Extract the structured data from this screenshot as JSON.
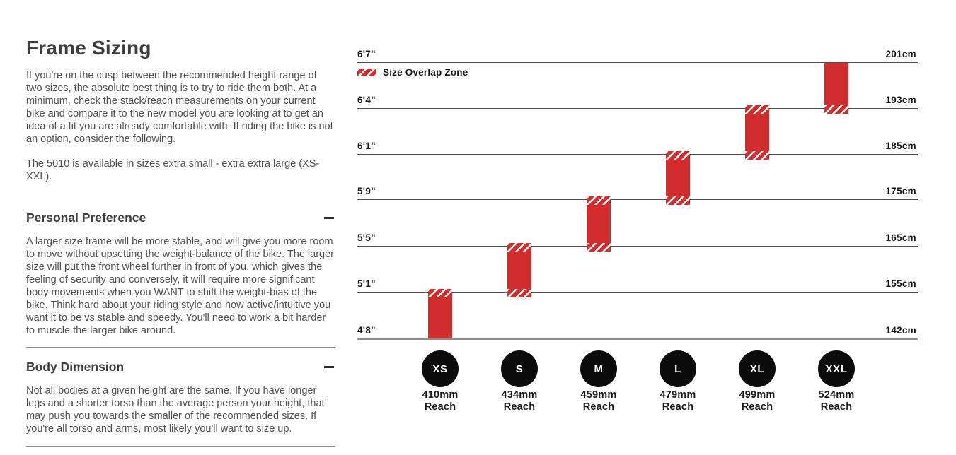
{
  "page": {
    "title": "Frame Sizing",
    "intro": "If you're on the cusp between the recommended height range of two sizes, the absolute best thing is to try to ride them both. At a minimum, check the stack/reach measurements on your current bike and compare it to the new model you are looking at to get an idea of a fit you are already comfortable with. If riding the bike is not an option, consider the following.",
    "availability": "The 5010 is available in sizes extra small - extra extra large (XS-XXL).",
    "sections": [
      {
        "title": "Personal Preference",
        "state": "expanded",
        "body": "A larger size frame will be more stable, and will give you more room to move without upsetting the weight-balance of the bike. The larger size will put the front wheel further in front of you, which gives the feeling of security and conversely, it will require more significant body movements when you WANT to shift the weight-bias of the bike. Think hard about your riding style and how active/intuitive you want it to be vs stable and speedy. You'll need to work a bit harder to muscle the larger bike around."
      },
      {
        "title": "Body Dimension",
        "state": "expanded",
        "body": "Not all bodies at a given height are the same. If you have longer legs and a shorter torso than the average person your height, that may push you towards the smaller of the recommended sizes. If you're all torso and arms, most likely you'll want to size up."
      }
    ]
  },
  "chart_data": {
    "type": "bar",
    "subtype": "floating-range-bars",
    "legend_label": "Size Overlap Zone",
    "axis": {
      "left_unit": "feet/inches",
      "right_unit": "cm",
      "range_metric_cm": [
        142,
        201
      ],
      "grid": true
    },
    "gridlines": [
      {
        "imperial": "6'7\"",
        "metric": "201cm",
        "cm": 201
      },
      {
        "imperial": "6'4\"",
        "metric": "193cm",
        "cm": 193
      },
      {
        "imperial": "6'1\"",
        "metric": "185cm",
        "cm": 185
      },
      {
        "imperial": "5'9\"",
        "metric": "175cm",
        "cm": 175
      },
      {
        "imperial": "5'5\"",
        "metric": "165cm",
        "cm": 165
      },
      {
        "imperial": "5'1\"",
        "metric": "155cm",
        "cm": 155
      },
      {
        "imperial": "4'8\"",
        "metric": "142cm",
        "cm": 142
      }
    ],
    "series": [
      {
        "size": "XS",
        "reach": "410mm",
        "reach_label": "Reach",
        "reach_mm": 410,
        "height_min_cm": 142,
        "height_max_cm": 155,
        "overlap_top": true,
        "overlap_bottom": false
      },
      {
        "size": "S",
        "reach": "434mm",
        "reach_label": "Reach",
        "reach_mm": 434,
        "height_min_cm": 155,
        "height_max_cm": 165,
        "overlap_top": true,
        "overlap_bottom": true
      },
      {
        "size": "M",
        "reach": "459mm",
        "reach_label": "Reach",
        "reach_mm": 459,
        "height_min_cm": 165,
        "height_max_cm": 175,
        "overlap_top": true,
        "overlap_bottom": true
      },
      {
        "size": "L",
        "reach": "479mm",
        "reach_label": "Reach",
        "reach_mm": 479,
        "height_min_cm": 175,
        "height_max_cm": 185,
        "overlap_top": true,
        "overlap_bottom": true
      },
      {
        "size": "XL",
        "reach": "499mm",
        "reach_label": "Reach",
        "reach_mm": 499,
        "height_min_cm": 185,
        "height_max_cm": 193,
        "overlap_top": true,
        "overlap_bottom": true
      },
      {
        "size": "XXL",
        "reach": "524mm",
        "reach_label": "Reach",
        "reach_mm": 524,
        "height_min_cm": 193,
        "height_max_cm": 201,
        "overlap_top": false,
        "overlap_bottom": true
      }
    ],
    "colors": {
      "bar": "#d32c2c",
      "circle": "#0b0b0b"
    }
  }
}
